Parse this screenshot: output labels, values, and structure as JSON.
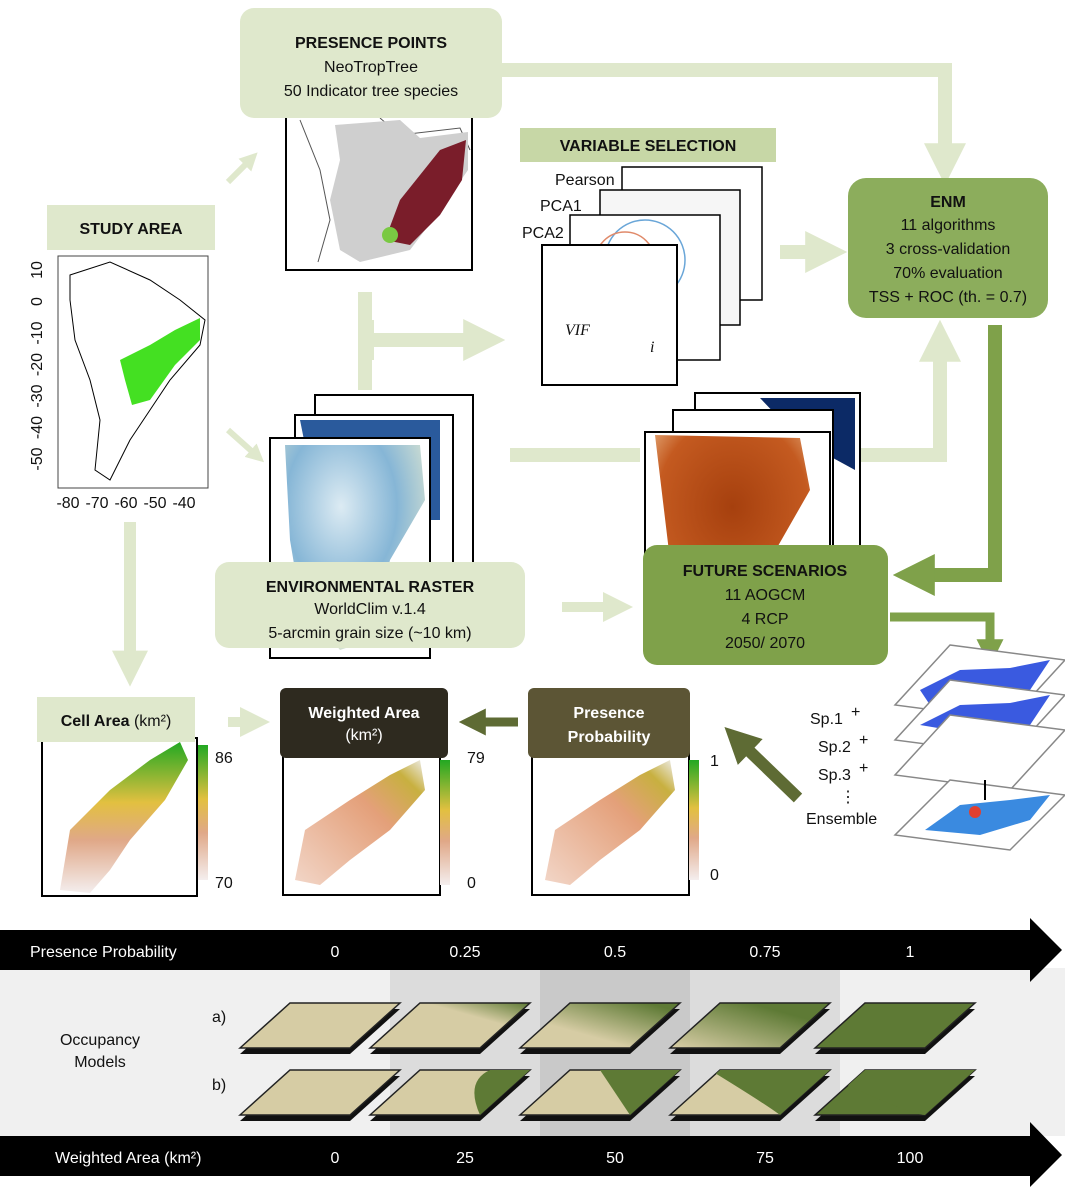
{
  "presence_points": {
    "title": "PRESENCE POINTS",
    "lines": [
      "NeoTropTree",
      "50 Indicator tree species"
    ]
  },
  "variable_selection": {
    "title": "VARIABLE SELECTION",
    "panels": [
      "Pearson",
      "PCA1",
      "PCA2"
    ],
    "vif": "VIF",
    "vif_subscript": "i"
  },
  "study_area": {
    "title": "STUDY AREA",
    "y_ticks": [
      "10",
      "0",
      "-10",
      "-20",
      "-30",
      "-40",
      "-50"
    ],
    "x_ticks": [
      "-80",
      "-70",
      "-60",
      "-50",
      "-40"
    ]
  },
  "enm": {
    "title": "ENM",
    "lines": [
      "11 algorithms",
      "3 cross-validation",
      "70% evaluation",
      "TSS + ROC (th. = 0.7)"
    ]
  },
  "environmental_raster": {
    "title": "ENVIRONMENTAL RASTER",
    "lines": [
      "WorldClim v.1.4",
      "5-arcmin grain size (~10 km)"
    ]
  },
  "future_scenarios": {
    "title": "FUTURE SCENARIOS",
    "lines": [
      "11 AOGCM",
      "4 RCP",
      "2050/ 2070"
    ]
  },
  "cell_area": {
    "label": "Cell Area",
    "unit": "(km²)",
    "legend": [
      "86",
      "70"
    ]
  },
  "weighted_area": {
    "label": "Weighted Area",
    "unit": "(km²)",
    "legend": [
      "79",
      "0"
    ]
  },
  "presence_probability": {
    "lines": [
      "Presence",
      "Probability"
    ],
    "legend": [
      "1",
      "0"
    ]
  },
  "ensemble": {
    "species": [
      "Sp.1",
      "Sp.2",
      "Sp.3"
    ],
    "plus": "+",
    "ellipsis": "⋮",
    "label": "Ensemble"
  },
  "occupancy_table": {
    "top_label": "Presence Probability",
    "probabilities": [
      "0",
      "0.25",
      "0.5",
      "0.75",
      "1"
    ],
    "row_label": [
      "Occupancy",
      "Models"
    ],
    "rows": [
      "a)",
      "b)"
    ],
    "bottom_label": "Weighted Area (km²)",
    "weighted_areas": [
      "0",
      "25",
      "50",
      "75",
      "100"
    ]
  }
}
